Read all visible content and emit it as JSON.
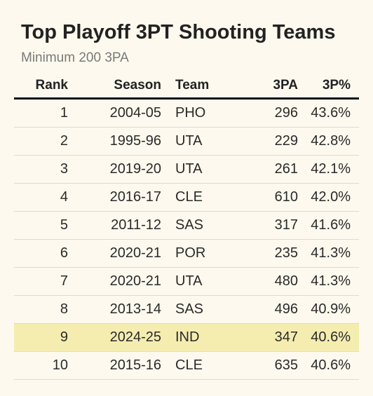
{
  "title": "Top Playoff 3PT Shooting Teams",
  "subtitle": "Minimum 200 3PA",
  "colors": {
    "background": "#fdf9ee",
    "highlight": "#f5edb0",
    "rule": "#111111"
  },
  "chart_data": {
    "type": "table",
    "title": "Top Playoff 3PT Shooting Teams",
    "subtitle": "Minimum 200 3PA",
    "columns": [
      "Rank",
      "Season",
      "Team",
      "3PA",
      "3P%"
    ],
    "rows": [
      {
        "rank": "1",
        "season": "2004-05",
        "team": "PHO",
        "tpa": "296",
        "tpp": "43.6%",
        "highlight": false
      },
      {
        "rank": "2",
        "season": "1995-96",
        "team": "UTA",
        "tpa": "229",
        "tpp": "42.8%",
        "highlight": false
      },
      {
        "rank": "3",
        "season": "2019-20",
        "team": "UTA",
        "tpa": "261",
        "tpp": "42.1%",
        "highlight": false
      },
      {
        "rank": "4",
        "season": "2016-17",
        "team": "CLE",
        "tpa": "610",
        "tpp": "42.0%",
        "highlight": false
      },
      {
        "rank": "5",
        "season": "2011-12",
        "team": "SAS",
        "tpa": "317",
        "tpp": "41.6%",
        "highlight": false
      },
      {
        "rank": "6",
        "season": "2020-21",
        "team": "POR",
        "tpa": "235",
        "tpp": "41.3%",
        "highlight": false
      },
      {
        "rank": "7",
        "season": "2020-21",
        "team": "UTA",
        "tpa": "480",
        "tpp": "41.3%",
        "highlight": false
      },
      {
        "rank": "8",
        "season": "2013-14",
        "team": "SAS",
        "tpa": "496",
        "tpp": "40.9%",
        "highlight": false
      },
      {
        "rank": "9",
        "season": "2024-25",
        "team": "IND",
        "tpa": "347",
        "tpp": "40.6%",
        "highlight": true
      },
      {
        "rank": "10",
        "season": "2015-16",
        "team": "CLE",
        "tpa": "635",
        "tpp": "40.6%",
        "highlight": false
      }
    ]
  }
}
